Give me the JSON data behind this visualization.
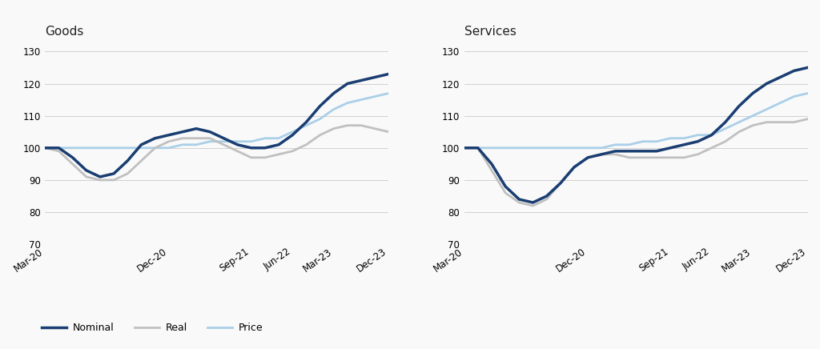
{
  "goods": {
    "nominal": [
      100,
      100,
      97,
      93,
      91,
      92,
      96,
      101,
      103,
      104,
      105,
      106,
      105,
      103,
      101,
      100,
      100,
      101,
      104,
      108,
      113,
      117,
      120,
      121,
      122,
      123
    ],
    "real": [
      100,
      99,
      95,
      91,
      90,
      90,
      92,
      96,
      100,
      102,
      103,
      103,
      103,
      101,
      99,
      97,
      97,
      98,
      99,
      101,
      104,
      106,
      107,
      107,
      106,
      105
    ],
    "price": [
      100,
      100,
      100,
      100,
      100,
      100,
      100,
      100,
      100,
      100,
      101,
      101,
      102,
      102,
      102,
      102,
      103,
      103,
      105,
      107,
      109,
      112,
      114,
      115,
      116,
      117
    ]
  },
  "services": {
    "nominal": [
      100,
      100,
      95,
      88,
      84,
      83,
      85,
      89,
      94,
      97,
      98,
      99,
      99,
      99,
      99,
      100,
      101,
      102,
      104,
      108,
      113,
      117,
      120,
      122,
      124,
      125
    ],
    "real": [
      100,
      100,
      93,
      86,
      83,
      82,
      84,
      89,
      94,
      97,
      98,
      98,
      97,
      97,
      97,
      97,
      97,
      98,
      100,
      102,
      105,
      107,
      108,
      108,
      108,
      109
    ],
    "price": [
      100,
      100,
      100,
      100,
      100,
      100,
      100,
      100,
      100,
      100,
      100,
      101,
      101,
      102,
      102,
      103,
      103,
      104,
      104,
      106,
      108,
      110,
      112,
      114,
      116,
      117
    ]
  },
  "x_labels": [
    "Mar-20",
    "Dec-20",
    "Sep-21",
    "Jun-22",
    "Mar-23",
    "Dec-23"
  ],
  "x_tick_positions": [
    0,
    9,
    15,
    18,
    21,
    25
  ],
  "ylim": [
    70,
    133
  ],
  "yticks": [
    70,
    80,
    90,
    100,
    110,
    120,
    130
  ],
  "nominal_color": "#1a3e72",
  "real_color": "#c0c0c0",
  "price_color": "#aacfe8",
  "title_goods": "Goods",
  "title_services": "Services",
  "legend_labels": [
    "Nominal",
    "Real",
    "Price"
  ],
  "background_color": "#f9f9f9"
}
